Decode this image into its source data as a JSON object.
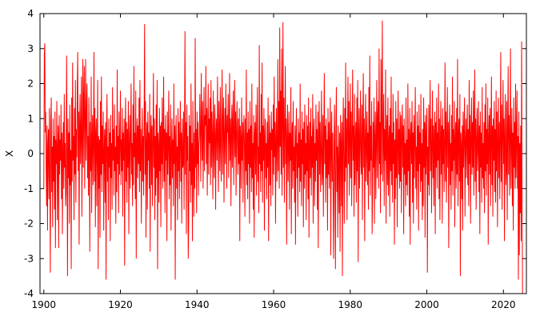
{
  "chart_data": {
    "type": "line",
    "title": "",
    "xlabel": "",
    "ylabel": "X",
    "xlim": [
      1899,
      2026
    ],
    "ylim": [
      -4,
      4
    ],
    "x_ticks": [
      1900,
      1920,
      1940,
      1960,
      1980,
      2000,
      2020
    ],
    "y_ticks": [
      -4,
      -3,
      -2,
      -1,
      0,
      1,
      2,
      3,
      4
    ],
    "grid": false,
    "legend": "none",
    "line_color": "#ff0000",
    "series": [
      {
        "x_start": 1900,
        "x_end": 2025,
        "points_per_year": 12,
        "values": [
          -1.0,
          2.8,
          3.15,
          0.6,
          1.2,
          -0.4,
          -1.5,
          0.8,
          -2.2,
          0.3,
          0.7,
          -1.3,
          1.3,
          -0.5,
          -3.4,
          0.9,
          1.6,
          -1.1,
          0.2,
          -2.1,
          1.0,
          -0.8,
          0.5,
          -1.6,
          1.2,
          -2.7,
          0.4,
          -0.3,
          1.5,
          -1.9,
          0.1,
          0.8,
          -2.7,
          1.1,
          -0.6,
          0.4,
          -0.2,
          1.4,
          -1.3,
          0.6,
          -2.3,
          0.2,
          0.9,
          -1.0,
          1.7,
          -0.4,
          0.3,
          -1.5,
          -1.1,
          2.8,
          0.2,
          -3.5,
          1.0,
          -0.7,
          0.6,
          -2.0,
          1.4,
          -0.9,
          0.1,
          -3.3,
          1.6,
          -0.8,
          2.6,
          -0.2,
          0.5,
          -1.9,
          1.3,
          -0.6,
          2.1,
          -1.4,
          0.7,
          -0.1,
          1.9,
          2.9,
          -0.5,
          1.2,
          -2.6,
          0.8,
          1.7,
          -0.3,
          0.6,
          2.2,
          -1.8,
          0.4,
          2.7,
          -0.4,
          1.5,
          2.5,
          -1.0,
          0.9,
          2.7,
          -0.2,
          1.1,
          2.0,
          -0.7,
          0.5,
          -1.2,
          1.6,
          0.3,
          -2.8,
          0.9,
          -0.5,
          2.2,
          -1.7,
          0.4,
          1.1,
          -0.9,
          0.2,
          2.9,
          -0.8,
          1.3,
          -2.1,
          0.6,
          1.0,
          -1.5,
          0.3,
          2.1,
          -3.3,
          0.5,
          -1.0,
          0.4,
          -2.4,
          1.5,
          -0.6,
          2.2,
          -1.1,
          0.8,
          -0.3,
          1.2,
          -2.2,
          0.1,
          0.7,
          -1.4,
          0.9,
          -3.6,
          0.5,
          1.7,
          -0.8,
          0.2,
          -1.9,
          1.0,
          -0.4,
          0.6,
          -2.5,
          1.1,
          -0.7,
          0.3,
          -1.6,
          1.9,
          -0.2,
          0.7,
          -1.2,
          1.4,
          -0.5,
          0.2,
          -2.0,
          0.8,
          -1.1,
          2.4,
          -0.3,
          0.5,
          -1.7,
          1.2,
          -0.6,
          0.3,
          1.8,
          -0.9,
          0.4,
          -0.5,
          1.3,
          -1.8,
          0.6,
          -0.2,
          1.0,
          -3.2,
          0.4,
          1.6,
          -0.8,
          0.9,
          -1.4,
          0.7,
          -0.4,
          1.5,
          -2.3,
          0.2,
          1.1,
          -1.0,
          0.5,
          2.0,
          -0.6,
          0.3,
          -1.5,
          1.4,
          -0.9,
          2.5,
          -0.1,
          0.6,
          -1.3,
          1.8,
          -3.0,
          0.4,
          1.0,
          -0.7,
          0.8,
          -0.3,
          1.6,
          -1.1,
          2.1,
          -0.5,
          0.7,
          -2.0,
          0.2,
          1.3,
          -0.8,
          0.5,
          -1.2,
          1.0,
          3.7,
          -0.6,
          1.5,
          -2.4,
          0.3,
          0.9,
          -1.6,
          1.2,
          -0.2,
          0.6,
          -1.0,
          1.7,
          -2.8,
          0.4,
          1.1,
          -0.9,
          0.8,
          -1.5,
          0.3,
          2.3,
          -0.4,
          1.0,
          -1.9,
          0.5,
          -1.2,
          1.4,
          -0.7,
          2.1,
          -3.3,
          0.6,
          0.2,
          -1.4,
          1.3,
          -0.5,
          0.8,
          -2.1,
          0.9,
          -0.3,
          1.6,
          -1.0,
          0.4,
          2.2,
          -0.8,
          0.7,
          -1.7,
          1.1,
          -0.2,
          0.6,
          -2.5,
          1.2,
          -0.6,
          0.3,
          1.8,
          -1.3,
          0.5,
          -0.9,
          1.4,
          -2.2,
          0.1,
          1.0,
          -0.7,
          0.4,
          -1.5,
          2.0,
          -0.3,
          0.8,
          -3.6,
          0.5,
          1.1,
          -1.0,
          0.2,
          -1.9,
          1.3,
          -0.5,
          0.9,
          -1.3,
          0.4,
          1.5,
          -0.8,
          0.6,
          -2.0,
          1.0,
          -0.4,
          -0.3,
          1.2,
          -1.6,
          0.7,
          3.5,
          -0.6,
          0.9,
          -2.3,
          1.4,
          -0.2,
          0.5,
          -3.0,
          -2.0,
          1.1,
          -0.5,
          0.8,
          -1.4,
          2.0,
          -0.9,
          0.3,
          -2.5,
          1.5,
          -0.1,
          -1.8,
          0.6,
          -1.0,
          3.3,
          -0.4,
          0.7,
          -1.7,
          1.2,
          -0.3,
          0.9,
          -1.2,
          0.2,
          0.5,
          1.7,
          0.4,
          -0.8,
          2.3,
          0.9,
          -0.2,
          1.5,
          -1.0,
          0.6,
          1.9,
          -0.5,
          1.1,
          0.8,
          2.5,
          -0.3,
          1.3,
          -1.2,
          0.7,
          2.0,
          -0.6,
          1.0,
          0.3,
          1.6,
          -0.9,
          2.1,
          -0.4,
          1.2,
          0.5,
          -1.3,
          1.8,
          0.2,
          -0.7,
          1.4,
          0.9,
          -1.6,
          0.6,
          1.0,
          -0.2,
          2.2,
          0.4,
          -1.1,
          1.5,
          0.7,
          -0.5,
          1.9,
          0.3,
          -0.8,
          1.2,
          2.4,
          -0.6,
          0.9,
          1.6,
          -1.4,
          0.5,
          1.3,
          -0.3,
          2.0,
          0.8,
          -1.0,
          1.1,
          0.6,
          1.7,
          -0.7,
          0.4,
          2.3,
          -0.2,
          1.0,
          -1.5,
          0.7,
          1.4,
          -0.4,
          0.9,
          1.8,
          -0.9,
          0.5,
          2.1,
          -0.1,
          1.2,
          -1.2,
          0.6,
          1.5,
          0.2,
          -0.6,
          1.0,
          -0.3,
          1.3,
          -2.5,
          0.8,
          0.4,
          -1.0,
          1.6,
          -0.2,
          0.9,
          -1.4,
          0.5,
          1.1,
          0.2,
          -1.8,
          1.0,
          -0.5,
          2.4,
          -0.9,
          0.6,
          -1.3,
          1.2,
          -0.3,
          0.7,
          -2.0,
          1.5,
          -0.4,
          0.8,
          -1.1,
          2.0,
          -0.7,
          0.3,
          -1.6,
          1.1,
          -2.4,
          0.5,
          0.9,
          -0.6,
          1.4,
          -1.2,
          0.4,
          1.9,
          -0.8,
          0.2,
          -1.7,
          3.1,
          -0.3,
          0.6,
          -1.1,
          1.7,
          -0.5,
          2.6,
          -1.4,
          0.8,
          -0.2,
          1.3,
          -2.2,
          0.5,
          1.0,
          -0.7,
          0.3,
          -1.3,
          0.9,
          -0.4,
          1.6,
          -2.5,
          0.3,
          1.1,
          -0.9,
          0.6,
          -1.5,
          1.2,
          0.1,
          0.7,
          -1.2,
          1.4,
          -0.6,
          2.2,
          -0.1,
          0.9,
          -2.0,
          0.4,
          1.3,
          -0.8,
          0.2,
          2.7,
          -0.5,
          1.5,
          -1.0,
          3.6,
          0.2,
          1.8,
          -0.6,
          3.0,
          -1.2,
          0.8,
          3.75,
          -0.4,
          1.6,
          -1.4,
          0.7,
          2.5,
          -0.3,
          1.0,
          -2.6,
          0.5,
          1.4,
          -0.8,
          0.3,
          1.2,
          -1.6,
          0.6,
          -0.2,
          1.9,
          -2.3,
          0.4,
          0.9,
          -1.0,
          1.5,
          -0.5,
          0.2,
          -1.4,
          0.8,
          -2.6,
          0.5,
          1.3,
          -0.7,
          0.3,
          -1.8,
          1.0,
          -0.4,
          0.6,
          -1.1,
          2.0,
          -0.8,
          0.4,
          -1.5,
          1.2,
          -0.3,
          0.7,
          -2.1,
          0.9,
          -1.0,
          1.4,
          -0.6,
          0.3,
          -1.9,
          1.1,
          -0.5,
          0.8,
          -1.3,
          1.6,
          -2.4,
          0.2,
          0.9,
          -0.7,
          1.3,
          -1.2,
          0.5,
          -0.4,
          1.7,
          -2.0,
          0.6,
          1.0,
          -1.5,
          0.3,
          -0.8,
          1.4,
          -0.2,
          0.7,
          -1.6,
          1.2,
          -2.7,
          0.4,
          1.5,
          -0.6,
          0.9,
          -1.1,
          0.2,
          1.8,
          -0.9,
          -0.5,
          1.1,
          -1.8,
          0.6,
          2.3,
          -0.3,
          0.8,
          -1.4,
          1.0,
          -0.7,
          0.4,
          -2.2,
          1.3,
          -0.6,
          0.9,
          -1.0,
          0.5,
          1.6,
          -2.9,
          0.3,
          1.2,
          -0.8,
          0.6,
          -1.3,
          -3.0,
          0.4,
          1.4,
          -0.9,
          -3.3,
          0.7,
          1.9,
          -1.1,
          0.2,
          -2.4,
          0.8,
          -0.2,
          -1.7,
          0.6,
          -2.8,
          1.1,
          0.3,
          -1.5,
          0.9,
          -3.5,
          0.5,
          1.6,
          -0.6,
          -2.0,
          1.3,
          -0.8,
          2.6,
          -0.4,
          1.0,
          -1.9,
          0.7,
          2.2,
          -0.3,
          1.5,
          -1.2,
          0.4,
          2.0,
          -0.7,
          1.2,
          -1.5,
          0.5,
          2.4,
          -0.2,
          0.8,
          -1.8,
          1.7,
          -0.9,
          0.3,
          0.9,
          -1.4,
          1.6,
          -0.5,
          2.1,
          -3.1,
          0.6,
          1.3,
          -1.0,
          0.4,
          1.8,
          -0.3,
          -0.6,
          1.4,
          -1.9,
          0.7,
          2.3,
          -0.4,
          1.0,
          -2.5,
          0.5,
          1.7,
          -0.8,
          0.2,
          1.2,
          -0.9,
          0.6,
          -1.6,
          1.9,
          -0.5,
          2.8,
          -1.2,
          0.8,
          -0.2,
          1.5,
          -2.3,
          -1.1,
          0.9,
          -0.4,
          1.6,
          -2.0,
          0.5,
          1.2,
          -1.3,
          0.3,
          2.1,
          -0.7,
          1.0,
          1.5,
          -1.0,
          3.0,
          -0.3,
          0.9,
          -1.7,
          2.7,
          -0.6,
          1.3,
          3.8,
          -0.8,
          0.4,
          1.7,
          -1.5,
          0.7,
          -0.2,
          2.4,
          -2.0,
          0.5,
          1.1,
          -0.9,
          1.6,
          -1.2,
          0.3,
          0.8,
          -1.8,
          1.3,
          -0.5,
          2.2,
          -0.9,
          0.6,
          -1.4,
          1.7,
          -0.3,
          0.9,
          -2.6,
          0.4,
          -1.3,
          1.5,
          -0.7,
          1.0,
          -2.1,
          0.3,
          1.8,
          -0.6,
          0.7,
          -1.0,
          1.2,
          -0.8,
          1.1,
          -1.7,
          0.5,
          1.4,
          -0.4,
          0.8,
          -2.3,
          1.0,
          -0.6,
          0.3,
          -1.5,
          1.6,
          -0.9,
          0.4,
          -1.2,
          2.0,
          -0.5,
          0.7,
          -1.8,
          1.3,
          -2.6,
          0.5,
          0.9,
          -0.3,
          1.5,
          -1.4,
          0.6,
          -2.0,
          1.1,
          -0.7,
          0.4,
          1.9,
          -1.0,
          0.2,
          -1.6,
          1.2,
          -0.5,
          0.8,
          -2.2,
          1.4,
          -0.3,
          0.6,
          -1.1,
          1.7,
          -0.8,
          0.3,
          -1.9,
          0.7,
          -1.5,
          1.6,
          -0.4,
          0.9,
          -2.4,
          1.1,
          -0.6,
          0.5,
          1.3,
          -3.4,
          0.2,
          -0.9,
          1.4,
          -1.2,
          0.6,
          2.1,
          -0.5,
          1.0,
          -1.7,
          0.3,
          1.8,
          -0.7,
          0.8,
          -1.5,
          0.5,
          1.2,
          -2.3,
          0.9,
          -0.4,
          1.6,
          -1.0,
          0.6,
          -0.2,
          2.0,
          -1.3,
          1.0,
          -1.9,
          0.4,
          1.5,
          -0.6,
          0.8,
          -2.0,
          1.3,
          -0.3,
          0.7,
          -1.1,
          0.4,
          2.6,
          -0.8,
          1.2,
          -1.4,
          0.5,
          1.9,
          -0.4,
          0.9,
          -2.7,
          0.6,
          1.4,
          -0.9,
          0.3,
          -1.6,
          1.1,
          -0.5,
          2.2,
          -1.2,
          0.7,
          -0.2,
          1.5,
          -2.1,
          0.4,
          0.9,
          -1.0,
          1.3,
          -0.6,
          2.7,
          -1.5,
          0.5,
          1.0,
          -0.8,
          1.7,
          -3.5,
          0.6,
          0.2,
          -1.3,
          0.8,
          -2.2,
          1.2,
          -0.4,
          0.6,
          1.6,
          -1.8,
          0.3,
          1.0,
          -0.7,
          0.5,
          1.4,
          -0.9,
          0.7,
          -1.5,
          2.1,
          -0.3,
          1.1,
          -2.0,
          0.5,
          1.6,
          -0.6,
          0.9,
          -0.4,
          1.8,
          -1.2,
          0.6,
          2.4,
          -0.8,
          1.0,
          -1.6,
          0.4,
          1.3,
          -0.5,
          0.2,
          1.5,
          -1.1,
          0.8,
          -2.3,
          1.2,
          -0.4,
          0.6,
          -1.4,
          1.9,
          -0.7,
          0.3,
          -1.0,
          0.9,
          -1.7,
          1.4,
          -0.5,
          2.0,
          -1.2,
          0.7,
          -0.3,
          1.6,
          -2.6,
          0.5,
          1.1,
          -0.6,
          1.3,
          -1.5,
          0.4,
          2.2,
          -0.9,
          0.8,
          -1.8,
          1.0,
          -0.2,
          1.5,
          -1.1,
          0.7,
          -1.4,
          1.8,
          -0.5,
          1.2,
          -2.1,
          0.4,
          1.6,
          -0.7,
          0.9,
          -1.3,
          0.3,
          2.9,
          -0.8,
          1.4,
          -1.6,
          0.6,
          2.1,
          -0.3,
          1.0,
          -2.5,
          0.7,
          1.7,
          -0.9,
          -0.4,
          1.5,
          -1.9,
          0.8,
          2.5,
          -0.6,
          1.1,
          -1.2,
          0.5,
          3.0,
          -1.0,
          0.3,
          1.3,
          -1.5,
          0.6,
          -2.2,
          1.6,
          -0.4,
          0.9,
          -1.0,
          2.0,
          -0.7,
          0.4,
          1.8,
          -1.0,
          0.5,
          -3.6,
          1.2,
          -2.9,
          0.3,
          -1.7,
          0.8,
          -2.5,
          3.2,
          -1.4,
          -4.0
        ]
      }
    ]
  }
}
